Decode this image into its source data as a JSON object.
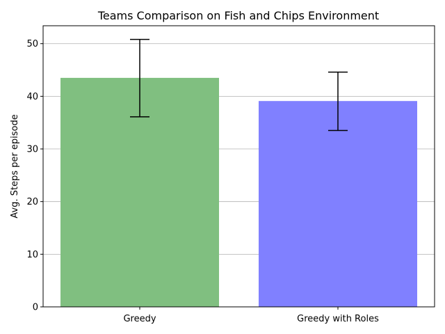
{
  "chart_data": {
    "type": "bar",
    "title": "Teams Comparison on Fish and Chips Environment",
    "xlabel": "",
    "ylabel": "Avg. Steps per episode",
    "categories": [
      "Greedy",
      "Greedy with Roles"
    ],
    "values": [
      43.5,
      39.1
    ],
    "error_low": [
      36.1,
      33.5
    ],
    "error_high": [
      50.8,
      44.6
    ],
    "ylim": [
      0,
      53.4
    ],
    "yticks": [
      0,
      10,
      20,
      30,
      40,
      50
    ],
    "grid": "y",
    "legend": "none",
    "colors": [
      "#80bf80",
      "#8080ff"
    ],
    "error_color": "#000000"
  }
}
